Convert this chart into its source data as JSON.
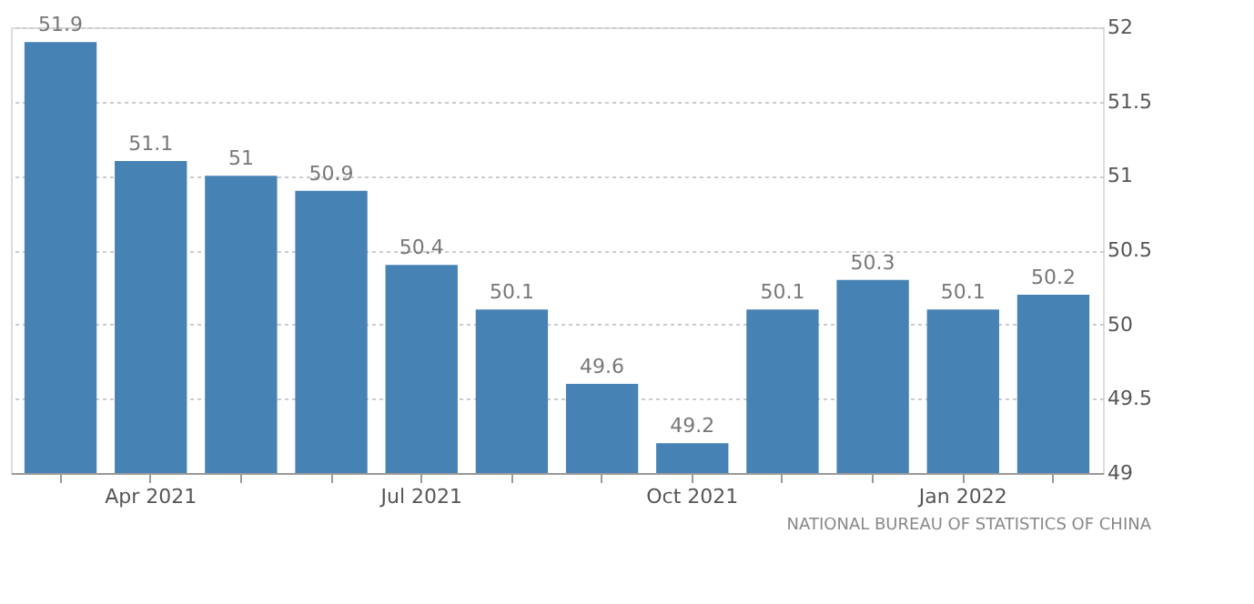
{
  "chart_data": {
    "type": "bar",
    "categories": [
      null,
      "Apr 2021",
      null,
      null,
      "Jul 2021",
      null,
      null,
      "Oct 2021",
      null,
      null,
      "Jan 2022",
      null
    ],
    "values": [
      51.9,
      51.1,
      51,
      50.9,
      50.4,
      50.1,
      49.6,
      49.2,
      50.1,
      50.3,
      50.1,
      50.2
    ],
    "color": "#4682b4",
    "ylim": [
      49,
      52
    ],
    "yticks": [
      49,
      49.5,
      50,
      50.5,
      51,
      51.5,
      52
    ],
    "grid": "y",
    "data_labels": true,
    "annotations": [
      "NATIONAL BUREAU OF STATISTICS OF CHINA"
    ]
  }
}
